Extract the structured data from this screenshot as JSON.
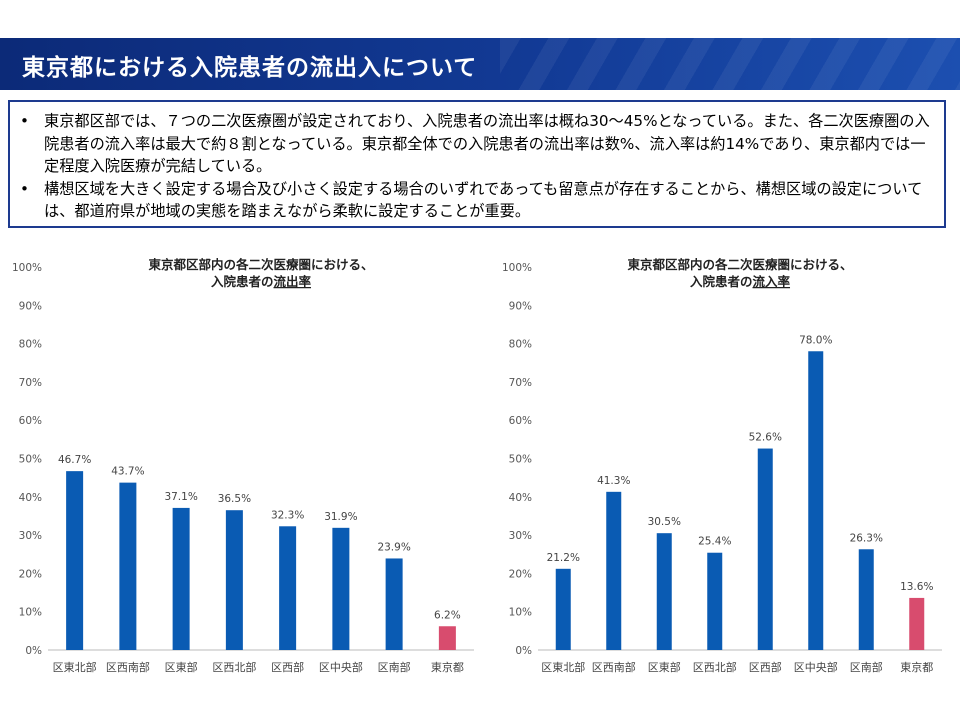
{
  "header": {
    "title": "東京都における入院患者の流出入について"
  },
  "summary": {
    "bullets": [
      "東京都区部では、７つの二次医療圏が設定されており、入院患者の流出率は概ね30～45%となっている。また、各二次医療圏の入院患者の流入率は最大で約８割となっている。東京都全体での入院患者の流出率は数%、流入率は約14%であり、東京都内では一定程度入院医療が完結している。",
      "構想区域を大きく設定する場合及び小さく設定する場合のいずれであっても留意点が存在することから、構想区域の設定については、都道府県が地域の実態を踏まえながら柔軟に設定することが重要。"
    ],
    "bullet_symbol": "•"
  },
  "colors": {
    "bar": "#0a5bb3",
    "highlight": "#d84c6e",
    "title_bg": "#123a95",
    "box_border": "#1d3a8f"
  },
  "chart_data": [
    {
      "type": "bar",
      "title_line1": "東京都区部内の各二次医療圏における、",
      "title_line2_prefix": "入院患者の",
      "title_line2_emph": "流出率",
      "categories": [
        "区東北部",
        "区西南部",
        "区東部",
        "区西北部",
        "区西部",
        "区中央部",
        "区南部",
        "東京都"
      ],
      "values": [
        46.7,
        43.7,
        37.1,
        36.5,
        32.3,
        31.9,
        23.9,
        6.2
      ],
      "value_labels": [
        "46.7%",
        "43.7%",
        "37.1%",
        "36.5%",
        "32.3%",
        "31.9%",
        "23.9%",
        "6.2%"
      ],
      "highlight_index": 7,
      "ylim": [
        0,
        100
      ],
      "yticks": [
        "0%",
        "10%",
        "20%",
        "30%",
        "40%",
        "50%",
        "60%",
        "70%",
        "80%",
        "90%",
        "100%"
      ],
      "xlabel": "",
      "ylabel": ""
    },
    {
      "type": "bar",
      "title_line1": "東京都区部内の各二次医療圏における、",
      "title_line2_prefix": "入院患者の",
      "title_line2_emph": "流入率",
      "categories": [
        "区東北部",
        "区西南部",
        "区東部",
        "区西北部",
        "区西部",
        "区中央部",
        "区南部",
        "東京都"
      ],
      "values": [
        21.2,
        41.3,
        30.5,
        25.4,
        52.6,
        78.0,
        26.3,
        13.6
      ],
      "value_labels": [
        "21.2%",
        "41.3%",
        "30.5%",
        "25.4%",
        "52.6%",
        "78.0%",
        "26.3%",
        "13.6%"
      ],
      "highlight_index": 7,
      "ylim": [
        0,
        100
      ],
      "yticks": [
        "0%",
        "10%",
        "20%",
        "30%",
        "40%",
        "50%",
        "60%",
        "70%",
        "80%",
        "90%",
        "100%"
      ],
      "xlabel": "",
      "ylabel": ""
    }
  ]
}
